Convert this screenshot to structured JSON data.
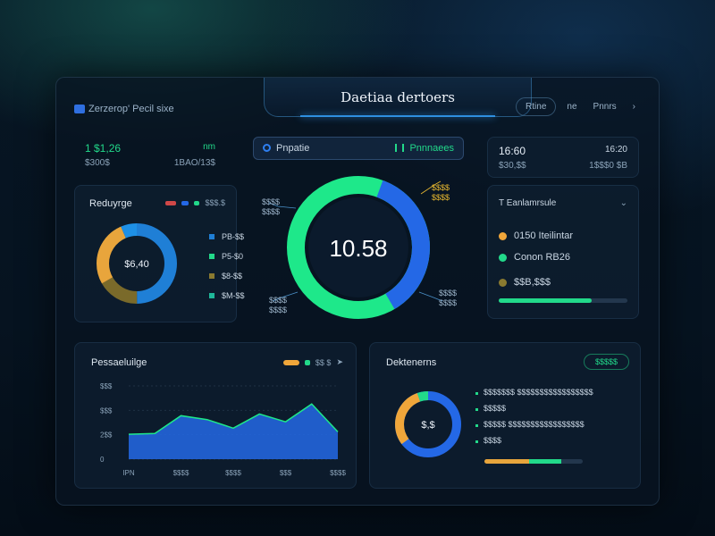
{
  "header": {
    "title": "Daetiaa dertoers",
    "brand": "Zerzerop' Pecil sixe",
    "tabs": [
      "Rtine",
      "ne",
      "Pnnrs"
    ]
  },
  "stat_left": {
    "value": "1 $1,26",
    "badge": "nm",
    "sub1": "$300$",
    "sub2": "1BAO/13$"
  },
  "center_head": {
    "left_label": "Pnpatie",
    "right_label": "Pnnnaees"
  },
  "stat_right": {
    "value": "16:60",
    "badge": "16:20",
    "sub1": "$30,$$",
    "sub2": "1$$$0 $B"
  },
  "left_card": {
    "title": "Reduyrge",
    "legend_label": "$$$.$",
    "center_value": "$6,40",
    "legend": [
      "PB-$$",
      "P5-$0",
      "$8-$$",
      "$M-$$"
    ],
    "colors": [
      "#1f7fd6",
      "#22d98a",
      "#8a7a30",
      "#1fb89a"
    ]
  },
  "center_donut": {
    "value": "10.58",
    "callouts": {
      "tl": [
        "$$$$",
        "$$$$"
      ],
      "tr": [
        "$$$$",
        "$$$$"
      ],
      "bl": [
        "$$$$",
        "$$$$"
      ],
      "br": [
        "$$$$",
        "$$$$"
      ]
    },
    "fractions": [
      0.36,
      0.64
    ],
    "colors": [
      "#2468e6",
      "#1ee88a"
    ]
  },
  "right_card": {
    "title": "T Eanlamrsule",
    "rows": [
      {
        "text": "0150 Iteilintar",
        "color": "#f0a63a"
      },
      {
        "text": "Conon RB26",
        "color": "#22d98a"
      },
      {
        "text": "$$B,$$$",
        "color": "#8a7a30"
      }
    ],
    "progress": 0.72
  },
  "area_chart_card": {
    "title": "Pessaeluilge",
    "legend_label": "$$ $"
  },
  "chart_data": {
    "type": "area",
    "x": [
      0,
      1,
      2,
      3,
      4,
      5,
      6,
      7,
      8
    ],
    "y": [
      102,
      105,
      178,
      162,
      127,
      185,
      153,
      226,
      112
    ],
    "xticks": [
      "IPN",
      "$$$$",
      "$$$$",
      "$$$",
      "$$$$"
    ],
    "yticks": [
      "0",
      "2$$",
      "$$$",
      "$$$"
    ],
    "ylim": [
      0,
      300
    ],
    "color": "#2468e6",
    "line_color": "#1ee88a"
  },
  "dist_card": {
    "title": "Dektenerns",
    "button": "$$$$$",
    "center_value": "$,$",
    "items": [
      "$$$$$$$ $$$$$$$$$$$$$$$$$",
      "$$$$$",
      "$$$$$ $$$$$$$$$$$$$$$$$",
      "$$$$"
    ],
    "fractions": [
      0.6,
      0.3,
      0.1
    ],
    "colors": [
      "#2468e6",
      "#f0a63a",
      "#22d98a"
    ],
    "progress": [
      0.45,
      0.33
    ]
  }
}
